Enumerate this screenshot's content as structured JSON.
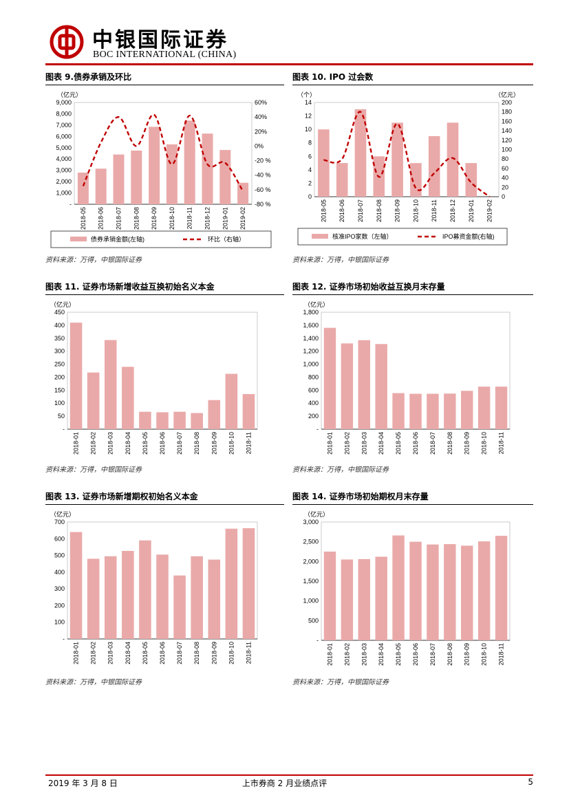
{
  "header": {
    "company_cn": "中银国际证券",
    "company_en": "BOC INTERNATIONAL (CHINA)"
  },
  "colors": {
    "bar": "#eaa9a9",
    "line": "#c00000",
    "brand": "#c00000"
  },
  "footer": {
    "date": "2019 年 3 月 8 日",
    "title": "上市券商 2 月业绩点评",
    "page": "5"
  },
  "source_label": "资料来源：万得，中银国际证券",
  "chart_data": [
    {
      "id": "c9",
      "type": "bar+line",
      "title": "图表 9.债券承销及环比",
      "left_unit": "（亿元）",
      "categories": [
        "2018-05",
        "2018-06",
        "2018-07",
        "2018-08",
        "2018-09",
        "2018-10",
        "2018-11",
        "2018-12",
        "2019-01",
        "2019-02"
      ],
      "series": [
        {
          "name": "债券承销金额(左轴)",
          "axis": "left",
          "kind": "bar",
          "values": [
            2800,
            3150,
            4400,
            4750,
            6850,
            5300,
            7400,
            6250,
            4800,
            1900
          ]
        },
        {
          "name": "环比（右轴）",
          "axis": "right",
          "kind": "line",
          "values": [
            -55,
            5,
            40,
            0,
            43,
            -25,
            42,
            -25,
            -23,
            -62
          ]
        }
      ],
      "ylim_left": [
        0,
        9000
      ],
      "left_ticks": [
        "-",
        "1,000",
        "2,000",
        "3,000",
        "4,000",
        "5,000",
        "6,000",
        "7,000",
        "8,000",
        "9,000"
      ],
      "ylim_right": [
        -80,
        60
      ],
      "right_ticks": [
        "-80 %",
        "-60 %",
        "-40 %",
        "-20 %",
        "0%",
        "20%",
        "40%",
        "60%"
      ]
    },
    {
      "id": "c10",
      "type": "bar+line",
      "title": "图表 10. IPO 过会数",
      "left_unit": "（个）",
      "right_unit": "（亿元）",
      "categories": [
        "2018-05",
        "2018-06",
        "2018-07",
        "2018-08",
        "2018-09",
        "2018-10",
        "2018-11",
        "2018-12",
        "2019-01",
        "2019-02"
      ],
      "series": [
        {
          "name": "核准IPO家数（左轴）",
          "axis": "left",
          "kind": "bar",
          "values": [
            10,
            5,
            13,
            6,
            11,
            5,
            9,
            11,
            5,
            0
          ]
        },
        {
          "name": "IPO募资金额(右轴)",
          "axis": "right",
          "kind": "line",
          "values": [
            78,
            80,
            180,
            42,
            155,
            18,
            50,
            82,
            30,
            0
          ]
        }
      ],
      "ylim_left": [
        0,
        14
      ],
      "left_ticks": [
        "0",
        "2",
        "4",
        "6",
        "8",
        "10",
        "12",
        "14"
      ],
      "ylim_right": [
        0,
        200
      ],
      "right_ticks": [
        "0",
        "20",
        "40",
        "60",
        "80",
        "100",
        "120",
        "140",
        "160",
        "180",
        "200"
      ]
    },
    {
      "id": "c11",
      "type": "bar",
      "title": "图表 11. 证券市场新增收益互换初始名义本金",
      "left_unit": "（亿元）",
      "categories": [
        "2018-01",
        "2018-02",
        "2018-03",
        "2018-04",
        "2018-05",
        "2018-06",
        "2018-07",
        "2018-08",
        "2018-09",
        "2018-10",
        "2018-11"
      ],
      "values": [
        410,
        218,
        343,
        240,
        67,
        65,
        67,
        62,
        112,
        213,
        135
      ],
      "ylim_left": [
        0,
        450
      ],
      "left_ticks": [
        "-",
        "50",
        "100",
        "150",
        "200",
        "250",
        "300",
        "350",
        "400",
        "450"
      ]
    },
    {
      "id": "c12",
      "type": "bar",
      "title": "图表 12. 证券市场初始收益互换月末存量",
      "left_unit": "（亿元）",
      "categories": [
        "2018-01",
        "2018-02",
        "2018-03",
        "2018-04",
        "2018-05",
        "2018-06",
        "2018-07",
        "2018-08",
        "2018-09",
        "2018-10",
        "2018-11"
      ],
      "values": [
        1560,
        1320,
        1370,
        1310,
        555,
        545,
        545,
        548,
        590,
        655,
        655
      ],
      "ylim_left": [
        0,
        1800
      ],
      "left_ticks": [
        "-",
        "200",
        "400",
        "600",
        "800",
        "1,000",
        "1,200",
        "1,400",
        "1,600",
        "1,800"
      ]
    },
    {
      "id": "c13",
      "type": "bar",
      "title": "图表 13. 证券市场新增期权初始名义本金",
      "left_unit": "（亿元）",
      "categories": [
        "2018-01",
        "2018-02",
        "2018-03",
        "2018-04",
        "2018-05",
        "2018-06",
        "2018-07",
        "2018-08",
        "2018-09",
        "2018-10",
        "2018-11"
      ],
      "values": [
        640,
        480,
        495,
        527,
        590,
        505,
        380,
        495,
        475,
        660,
        663
      ],
      "ylim_left": [
        0,
        700
      ],
      "left_ticks": [
        "-",
        "100",
        "200",
        "300",
        "400",
        "500",
        "600",
        "700"
      ]
    },
    {
      "id": "c14",
      "type": "bar",
      "title": "图表 14. 证券市场初始期权月末存量",
      "left_unit": "（亿元）",
      "categories": [
        "2018-01",
        "2018-02",
        "2018-03",
        "2018-04",
        "2018-05",
        "2018-06",
        "2018-07",
        "2018-08",
        "2018-09",
        "2018-10",
        "2018-11"
      ],
      "values": [
        2250,
        2050,
        2060,
        2120,
        2660,
        2500,
        2430,
        2440,
        2400,
        2510,
        2650
      ],
      "ylim_left": [
        0,
        3000
      ],
      "left_ticks": [
        "-",
        "500",
        "1,000",
        "1,500",
        "2,000",
        "2,500",
        "3,000"
      ]
    }
  ]
}
